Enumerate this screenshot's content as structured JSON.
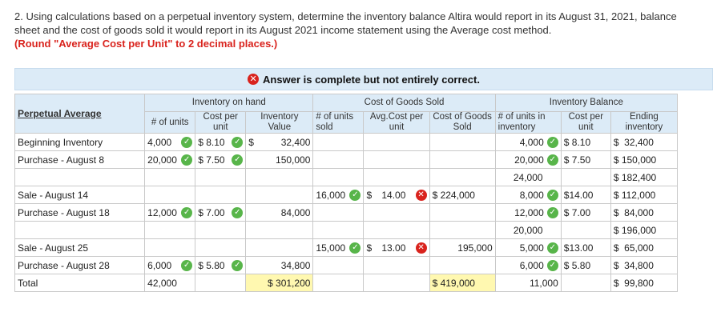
{
  "question": {
    "text": "2. Using calculations based on a perpetual inventory system, determine the inventory balance Altira would report in its August 31, 2021, balance sheet and the cost of goods sold it would report in its August 2021 income statement using the Average cost method.",
    "instruction": "(Round \"Average Cost per Unit\" to 2 decimal places.)"
  },
  "banner": {
    "text": "Answer is complete but not entirely correct."
  },
  "table": {
    "title": "Perpetual Average",
    "groups": {
      "on_hand": "Inventory on hand",
      "cogs": "Cost of Goods Sold",
      "balance": "Inventory Balance"
    },
    "headers": {
      "units": "# of units",
      "cost": "Cost per unit",
      "value": "Inventory Value",
      "sold_units": "# of units sold",
      "avg_cost": "Avg.Cost per unit",
      "cogs": "Cost of Goods Sold",
      "inv_units": "# of units in inventory",
      "bal_cost": "Cost per unit",
      "ending": "Ending inventory"
    },
    "rows": [
      {
        "label": "Beginning Inventory",
        "units": "4,000",
        "cost": "$ 8.10",
        "value_d": "$",
        "value": "32,400",
        "sold": "",
        "avg_d": "",
        "avg": "",
        "cogs": "",
        "inv": "4,000",
        "bcost": "$ 8.10",
        "end": "$  32,400"
      },
      {
        "label": "Purchase - August 8",
        "units": "20,000",
        "cost": "$ 7.50",
        "value_d": "",
        "value": "150,000",
        "sold": "",
        "avg_d": "",
        "avg": "",
        "cogs": "",
        "inv": "20,000",
        "bcost": "$ 7.50",
        "end": "$ 150,000"
      },
      {
        "label": "",
        "units": "",
        "cost": "",
        "value_d": "",
        "value": "",
        "sold": "",
        "avg_d": "",
        "avg": "",
        "cogs": "",
        "inv": "24,000",
        "bcost": "",
        "end": "$ 182,400"
      },
      {
        "label": "Sale - August 14",
        "units": "",
        "cost": "",
        "value_d": "",
        "value": "",
        "sold": "16,000",
        "avg_d": "$",
        "avg": "14.00",
        "cogs": "$ 224,000",
        "inv": "8,000",
        "bcost": "$14.00",
        "end": "$ 112,000"
      },
      {
        "label": "Purchase - August 18",
        "units": "12,000",
        "cost": "$ 7.00",
        "value_d": "",
        "value": "84,000",
        "sold": "",
        "avg_d": "",
        "avg": "",
        "cogs": "",
        "inv": "12,000",
        "bcost": "$ 7.00",
        "end": "$  84,000"
      },
      {
        "label": "",
        "units": "",
        "cost": "",
        "value_d": "",
        "value": "",
        "sold": "",
        "avg_d": "",
        "avg": "",
        "cogs": "",
        "inv": "20,000",
        "bcost": "",
        "end": "$ 196,000"
      },
      {
        "label": "Sale - August 25",
        "units": "",
        "cost": "",
        "value_d": "",
        "value": "",
        "sold": "15,000",
        "avg_d": "$",
        "avg": "13.00",
        "cogs": "195,000",
        "inv": "5,000",
        "bcost": "$13.00",
        "end": "$  65,000"
      },
      {
        "label": "Purchase - August 28",
        "units": "6,000",
        "cost": "$ 5.80",
        "value_d": "",
        "value": "34,800",
        "sold": "",
        "avg_d": "",
        "avg": "",
        "cogs": "",
        "inv": "6,000",
        "bcost": "$ 5.80",
        "end": "$  34,800"
      },
      {
        "label": "Total",
        "units": "42,000",
        "cost": "",
        "value_d": "",
        "value": "$ 301,200",
        "sold": "",
        "avg_d": "",
        "avg": "",
        "cogs": "$ 419,000",
        "inv": "11,000",
        "bcost": "",
        "end": "$  99,800"
      }
    ]
  },
  "colors": {
    "correct": "#58b54a",
    "incorrect": "#d9231d",
    "header_bg": "#dcebf7",
    "highlight": "#fff8b0",
    "instruction": "#d9231d"
  }
}
